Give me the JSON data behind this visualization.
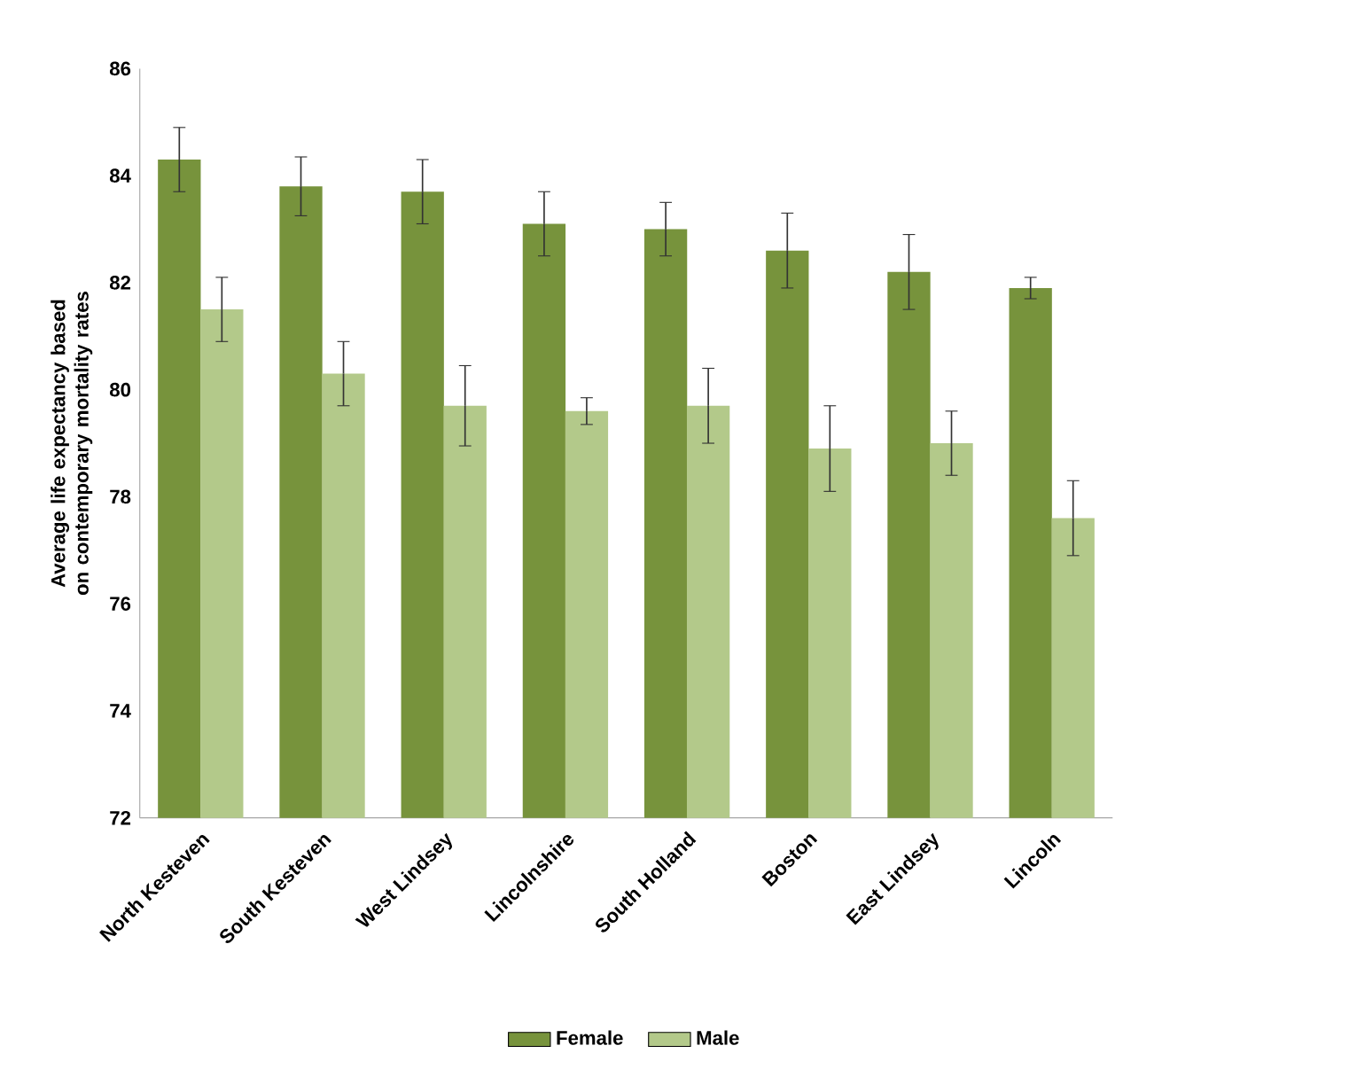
{
  "chart_data": {
    "type": "bar",
    "ylabel": "Average life expectancy based on contemporary mortality rates",
    "categories": [
      "North Kesteven",
      "South Kesteven",
      "West Lindsey",
      "Lincolnshire",
      "South Holland",
      "Boston",
      "East Lindsey",
      "Lincoln"
    ],
    "series": [
      {
        "name": "Female",
        "color": "#77933c",
        "values": [
          84.3,
          83.8,
          83.7,
          83.1,
          83.0,
          82.6,
          82.2,
          81.9
        ],
        "errors": [
          0.6,
          0.55,
          0.6,
          0.6,
          0.5,
          0.7,
          0.7,
          0.2
        ]
      },
      {
        "name": "Male",
        "color": "#b3c98a",
        "values": [
          81.5,
          80.3,
          79.7,
          79.6,
          79.7,
          78.9,
          79.0,
          77.6
        ],
        "errors": [
          0.6,
          0.6,
          0.75,
          0.25,
          0.7,
          0.8,
          0.6,
          0.7
        ]
      }
    ],
    "ylim": [
      72,
      86
    ],
    "yticks": [
      72,
      74,
      76,
      78,
      80,
      82,
      84,
      86
    ],
    "grid": false,
    "legend": "bottom"
  }
}
